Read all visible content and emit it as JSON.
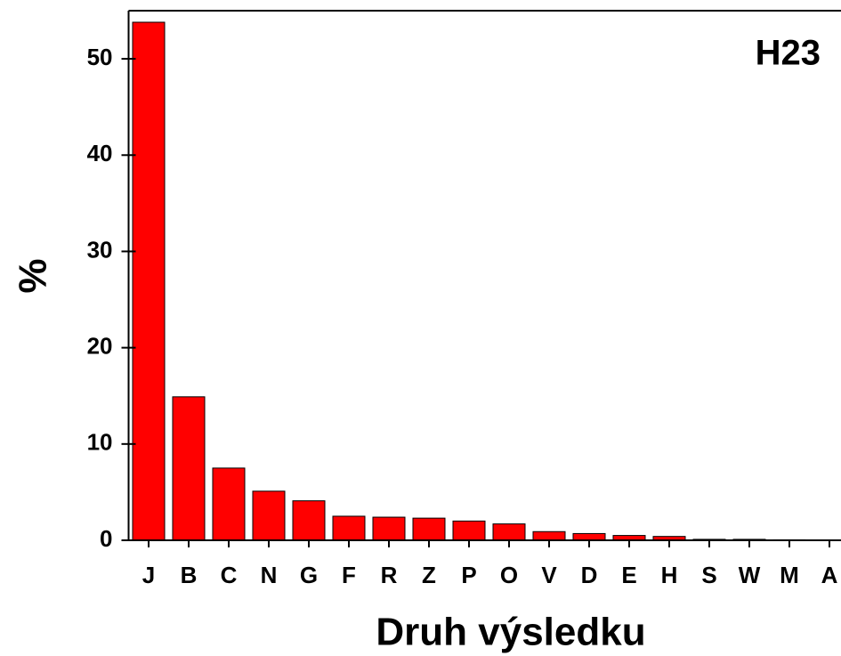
{
  "chart_data": {
    "type": "bar",
    "categories": [
      "J",
      "B",
      "C",
      "N",
      "G",
      "F",
      "R",
      "Z",
      "P",
      "O",
      "V",
      "D",
      "E",
      "H",
      "S",
      "W",
      "M",
      "A"
    ],
    "values": [
      53.8,
      14.9,
      7.5,
      5.1,
      4.1,
      2.5,
      2.4,
      2.3,
      2.0,
      1.7,
      0.9,
      0.7,
      0.5,
      0.4,
      0.1,
      0.1,
      0.05,
      0.03
    ],
    "color": "#ff0000",
    "ylim": [
      0,
      55
    ],
    "yticks": [
      0,
      10,
      20,
      30,
      40,
      50
    ],
    "xlabel": "Druh výsledku",
    "ylabel": "%",
    "annotation": "H23"
  }
}
